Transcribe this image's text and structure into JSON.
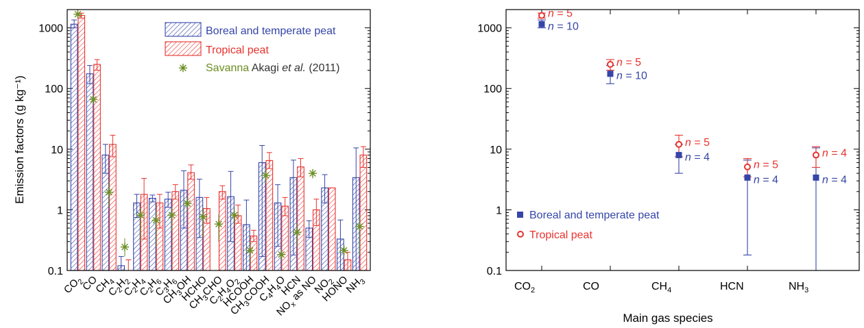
{
  "colors": {
    "boreal": "#3545a8",
    "tropical": "#e8322e",
    "savanna": "#6b8e23",
    "axis": "#000000"
  },
  "chart_data": [
    {
      "type": "bar",
      "scale": "log",
      "ylabel": "Emission factors (g kg⁻¹)",
      "ylim": [
        0.1,
        2000
      ],
      "yticks": [
        "0.1",
        "1",
        "10",
        "100",
        "1000"
      ],
      "categories": [
        {
          "base": "CO",
          "sub": "2"
        },
        {
          "base": "CO",
          "sub": ""
        },
        {
          "base": "CH",
          "sub": "4"
        },
        {
          "base": "C",
          "sub": "2",
          "base2": "H",
          "sub2": "2"
        },
        {
          "base": "C",
          "sub": "2",
          "base2": "H",
          "sub2": "4"
        },
        {
          "base": "C",
          "sub": "2",
          "base2": "H",
          "sub2": "6"
        },
        {
          "base": "C",
          "sub": "3",
          "base2": "H",
          "sub2": "6"
        },
        {
          "base": "CH",
          "sub": "3",
          "base2": "OH",
          "sub2": ""
        },
        {
          "base": "HCHO",
          "sub": ""
        },
        {
          "base": "CH",
          "sub": "3",
          "base2": "CHO",
          "sub2": ""
        },
        {
          "base": "C",
          "sub": "2",
          "base2": "H",
          "sub2": "4",
          "base3": "O",
          "sub3": "2"
        },
        {
          "base": "HCOOH",
          "sub": ""
        },
        {
          "base": "CH",
          "sub": "3",
          "base2": "COOH",
          "sub2": ""
        },
        {
          "base": "C",
          "sub": "4",
          "base2": "H",
          "sub2": "4",
          "base3": "O",
          "sub3": ""
        },
        {
          "base": "HCN",
          "sub": ""
        },
        {
          "base": "NO",
          "sub": "x",
          "base2": " as NO",
          "sub2": ""
        },
        {
          "base": "NO",
          "sub": "2"
        },
        {
          "base": "HONO",
          "sub": ""
        },
        {
          "base": "NH",
          "sub": "3"
        }
      ],
      "series": [
        {
          "name": "Boreal and temperate peat",
          "values": [
            1150,
            175,
            8,
            0.12,
            1.3,
            1.55,
            1.5,
            2.1,
            1.6,
            null,
            1.65,
            0.57,
            6,
            1.3,
            3.4,
            0.5,
            2.3,
            0.33,
            3.4
          ],
          "err_low": [
            1000,
            120,
            4,
            0.08,
            0.75,
            1.35,
            1.1,
            0.5,
            0.35,
            null,
            0.3,
            0.1,
            0.17,
            0.25,
            0.18,
            0.35,
            1.3,
            0.1,
            0.1
          ],
          "err_high": [
            1350,
            240,
            12,
            0.17,
            1.8,
            1.75,
            1.95,
            4.4,
            3.2,
            null,
            4.3,
            1.45,
            11.5,
            2.6,
            6.6,
            0.66,
            3.8,
            0.68,
            10.5
          ]
        },
        {
          "name": "Tropical peat",
          "values": [
            1600,
            250,
            12,
            0.1,
            1.8,
            1.3,
            2,
            4.1,
            1.05,
            2,
            0.8,
            0.37,
            6.5,
            1.15,
            5.1,
            1,
            2.3,
            0.15,
            8
          ],
          "err_low": [
            1450,
            200,
            7.5,
            0.1,
            0.33,
            0.5,
            1.5,
            3.2,
            0.6,
            1.5,
            0.6,
            0.3,
            4.8,
            0.8,
            3.5,
            0.55,
            2.3,
            0.1,
            5
          ],
          "err_high": [
            1750,
            300,
            17,
            0.15,
            3.3,
            1.8,
            2.6,
            5.5,
            1.6,
            2.5,
            1.2,
            0.46,
            8.8,
            1.6,
            7,
            1.5,
            2.3,
            0.2,
            11
          ]
        },
        {
          "name": "Savanna Akagi et al. (2011)",
          "values": [
            1650,
            65,
            1.9,
            0.24,
            0.8,
            0.66,
            0.8,
            1.25,
            0.75,
            0.57,
            0.8,
            0.21,
            3.6,
            0.18,
            0.42,
            3.9,
            null,
            0.21,
            0.52
          ],
          "err_low": [
            1600,
            55,
            1.1,
            0.17,
            0.3,
            0.25,
            0.45,
            0.95,
            0.35,
            0.3,
            0.55,
            0.13,
            2.7,
            0.15,
            0.25,
            3.3,
            null,
            0.17,
            0.18
          ],
          "err_high": [
            1700,
            75,
            3,
            0.34,
            1.1,
            0.95,
            1.1,
            1.6,
            1.1,
            0.85,
            1.1,
            0.3,
            4.8,
            0.21,
            0.6,
            4.6,
            null,
            0.26,
            0.85
          ]
        }
      ],
      "legend": [
        {
          "text": "Boreal and temperate peat"
        },
        {
          "text": "Tropical peat"
        },
        {
          "text": "Savanna",
          "text2": " Akagi ",
          "text3": "et al.",
          "text4": " (2011)"
        }
      ],
      "legend_position": "top-right"
    },
    {
      "type": "scatter",
      "scale": "log",
      "xlabel": "Main gas species",
      "ylim": [
        0.1,
        2000
      ],
      "yticks": [
        "0.1",
        "1",
        "10",
        "100",
        "1000"
      ],
      "categories": [
        {
          "base": "CO",
          "sub": "2"
        },
        {
          "base": "CO",
          "sub": ""
        },
        {
          "base": "CH",
          "sub": "4"
        },
        {
          "base": "HCN",
          "sub": ""
        },
        {
          "base": "NH",
          "sub": "3"
        }
      ],
      "series": [
        {
          "name": "Boreal and temperate peat",
          "values": [
            1150,
            175,
            8,
            3.4,
            3.4
          ],
          "err_low": [
            1000,
            120,
            4,
            0.18,
            0.1
          ],
          "err_high": [
            1350,
            240,
            12,
            6.6,
            10.5
          ],
          "n_labels": [
            "n = 10",
            "n = 10",
            "n = 4",
            "n = 4",
            "n = 4"
          ]
        },
        {
          "name": "Tropical peat",
          "values": [
            1600,
            250,
            12,
            5.1,
            8
          ],
          "err_low": [
            1450,
            200,
            7.5,
            3.5,
            5
          ],
          "err_high": [
            1750,
            300,
            17,
            7,
            11
          ],
          "n_labels": [
            "n = 5",
            "n = 5",
            "n = 5",
            "n = 5",
            "n = 4"
          ]
        }
      ],
      "legend": [
        {
          "text": "Boreal and temperate peat"
        },
        {
          "text": "Tropical peat"
        }
      ],
      "legend_position": "bottom-left"
    }
  ]
}
